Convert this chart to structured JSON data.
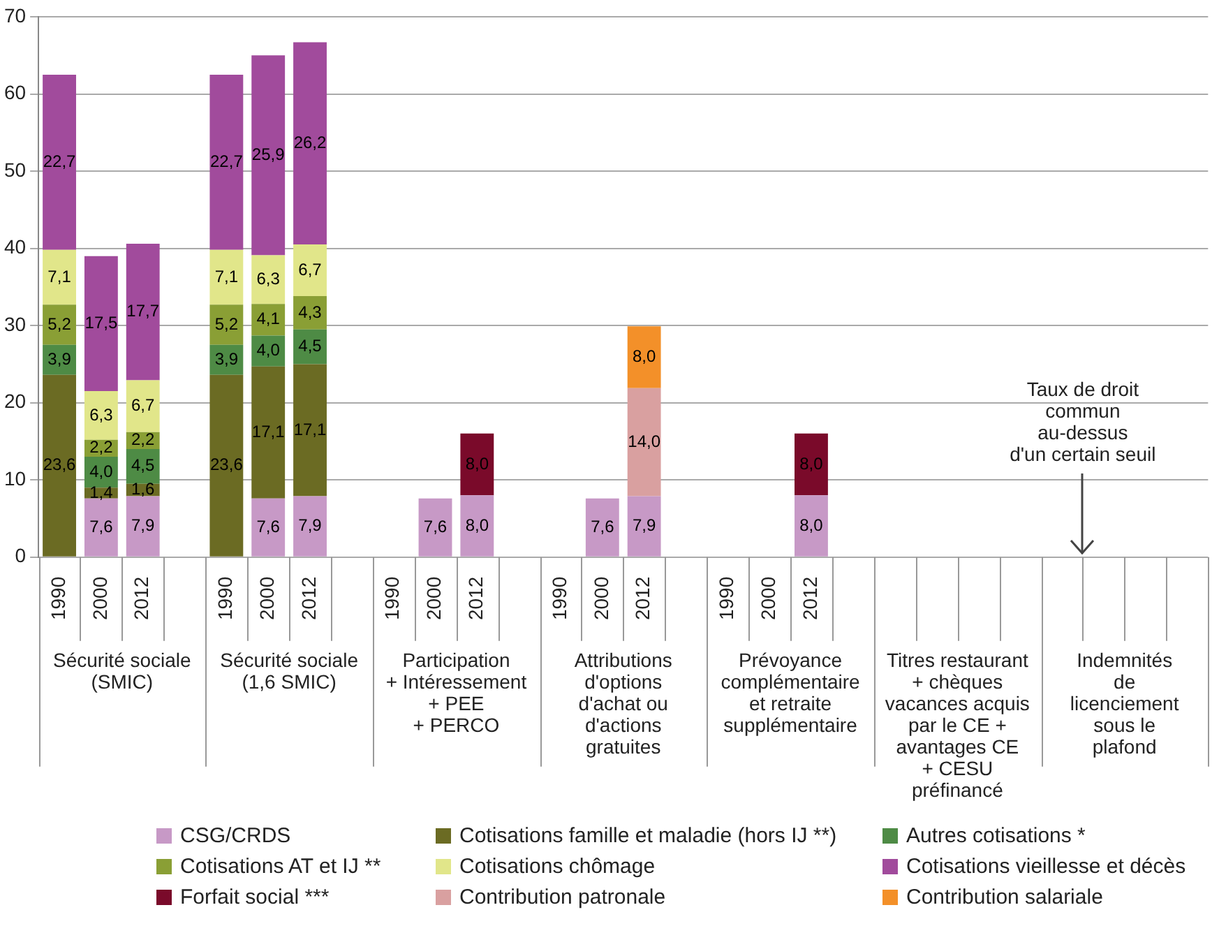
{
  "chart_data": {
    "type": "bar",
    "stacked": true,
    "grid": "y",
    "legend": "bottom",
    "categories": [
      "1990",
      "2000",
      "2012",
      null,
      "1990",
      "2000",
      "2012",
      null,
      "1990",
      "2000",
      "2012",
      null,
      "1990",
      "2000",
      "2012",
      null,
      "1990",
      "2000",
      "2012",
      null,
      null,
      null,
      null,
      null,
      null,
      null,
      null,
      null
    ],
    "ylim": [
      0,
      70
    ],
    "yticks": [
      0,
      10,
      20,
      30,
      40,
      50,
      60,
      70
    ],
    "series": [
      {
        "name": "CSG/CRDS",
        "color": "#c799c6",
        "values": [
          null,
          7.6,
          7.9,
          null,
          null,
          7.6,
          7.9,
          null,
          null,
          7.6,
          8.0,
          null,
          null,
          7.6,
          7.9,
          null,
          null,
          null,
          8.0,
          null,
          null,
          null,
          null,
          null,
          null,
          null,
          null,
          null
        ],
        "value_labels": [
          null,
          "7,6",
          "7,9",
          null,
          null,
          "7,6",
          "7,9",
          null,
          null,
          "7,6",
          "8,0",
          null,
          null,
          "7,6",
          "7,9",
          null,
          null,
          null,
          "8,0",
          null,
          null,
          null,
          null,
          null,
          null,
          null,
          null,
          null
        ]
      },
      {
        "name": "Cotisations famille et maladie (hors IJ **)",
        "color": "#6b6b23",
        "values": [
          23.6,
          1.4,
          1.6,
          null,
          23.6,
          17.1,
          17.1,
          null,
          null,
          null,
          null,
          null,
          null,
          null,
          null,
          null,
          null,
          null,
          null,
          null,
          null,
          null,
          null,
          null,
          null,
          null,
          null,
          null
        ],
        "value_labels": [
          "23,6",
          "1,4",
          "1,6",
          null,
          "23,6",
          "17,1",
          "17,1",
          null,
          null,
          null,
          null,
          null,
          null,
          null,
          null,
          null,
          null,
          null,
          null,
          null,
          null,
          null,
          null,
          null,
          null,
          null,
          null,
          null
        ]
      },
      {
        "name": "Autres cotisations *",
        "color": "#4e8b45",
        "values": [
          3.9,
          4.0,
          4.5,
          null,
          3.9,
          4.0,
          4.5,
          null,
          null,
          null,
          null,
          null,
          null,
          null,
          null,
          null,
          null,
          null,
          null,
          null,
          null,
          null,
          null,
          null,
          null,
          null,
          null,
          null
        ],
        "value_labels": [
          "3,9",
          "4,0",
          "4,5",
          null,
          "3,9",
          "4,0",
          "4,5",
          null,
          null,
          null,
          null,
          null,
          null,
          null,
          null,
          null,
          null,
          null,
          null,
          null,
          null,
          null,
          null,
          null,
          null,
          null,
          null,
          null
        ]
      },
      {
        "name": "Cotisations AT et IJ **",
        "color": "#8a9f35",
        "values": [
          5.2,
          2.2,
          2.2,
          null,
          5.2,
          4.1,
          4.3,
          null,
          null,
          null,
          null,
          null,
          null,
          null,
          null,
          null,
          null,
          null,
          null,
          null,
          null,
          null,
          null,
          null,
          null,
          null,
          null,
          null
        ],
        "value_labels": [
          "5,2",
          "2,2",
          "2,2",
          null,
          "5,2",
          "4,1",
          "4,3",
          null,
          null,
          null,
          null,
          null,
          null,
          null,
          null,
          null,
          null,
          null,
          null,
          null,
          null,
          null,
          null,
          null,
          null,
          null,
          null,
          null
        ]
      },
      {
        "name": "Cotisations chômage",
        "color": "#e1e68a",
        "values": [
          7.1,
          6.3,
          6.7,
          null,
          7.1,
          6.3,
          6.7,
          null,
          null,
          null,
          null,
          null,
          null,
          null,
          null,
          null,
          null,
          null,
          null,
          null,
          null,
          null,
          null,
          null,
          null,
          null,
          null,
          null
        ],
        "value_labels": [
          "7,1",
          "6,3",
          "6,7",
          null,
          "7,1",
          "6,3",
          "6,7",
          null,
          null,
          null,
          null,
          null,
          null,
          null,
          null,
          null,
          null,
          null,
          null,
          null,
          null,
          null,
          null,
          null,
          null,
          null,
          null,
          null
        ]
      },
      {
        "name": "Cotisations vieillesse et décès",
        "color": "#a14b9c",
        "values": [
          22.7,
          17.5,
          17.7,
          null,
          22.7,
          25.9,
          26.2,
          null,
          null,
          null,
          null,
          null,
          null,
          null,
          null,
          null,
          null,
          null,
          null,
          null,
          null,
          null,
          null,
          null,
          null,
          null,
          null,
          null
        ],
        "value_labels": [
          "22,7",
          "17,5",
          "17,7",
          null,
          "22,7",
          "25,9",
          "26,2",
          null,
          null,
          null,
          null,
          null,
          null,
          null,
          null,
          null,
          null,
          null,
          null,
          null,
          null,
          null,
          null,
          null,
          null,
          null,
          null,
          null
        ]
      },
      {
        "name": "Forfait social ***",
        "color": "#7a0a2a",
        "values": [
          null,
          null,
          null,
          null,
          null,
          null,
          null,
          null,
          null,
          null,
          8.0,
          null,
          null,
          null,
          null,
          null,
          null,
          null,
          8.0,
          null,
          null,
          null,
          null,
          null,
          null,
          null,
          null,
          null
        ],
        "value_labels": [
          null,
          null,
          null,
          null,
          null,
          null,
          null,
          null,
          null,
          null,
          "8,0",
          null,
          null,
          null,
          null,
          null,
          null,
          null,
          "8,0",
          null,
          null,
          null,
          null,
          null,
          null,
          null,
          null,
          null
        ]
      },
      {
        "name": "Contribution patronale",
        "color": "#d9a0a0",
        "values": [
          null,
          null,
          null,
          null,
          null,
          null,
          null,
          null,
          null,
          null,
          null,
          null,
          null,
          null,
          14.0,
          null,
          null,
          null,
          null,
          null,
          null,
          null,
          null,
          null,
          null,
          null,
          null,
          null
        ],
        "value_labels": [
          null,
          null,
          null,
          null,
          null,
          null,
          null,
          null,
          null,
          null,
          null,
          null,
          null,
          null,
          "14,0",
          null,
          null,
          null,
          null,
          null,
          null,
          null,
          null,
          null,
          null,
          null,
          null,
          null
        ]
      },
      {
        "name": "Contribution salariale",
        "color": "#f39029",
        "values": [
          null,
          null,
          null,
          null,
          null,
          null,
          null,
          null,
          null,
          null,
          null,
          null,
          null,
          null,
          8.0,
          null,
          null,
          null,
          null,
          null,
          null,
          null,
          null,
          null,
          null,
          null,
          null,
          null
        ],
        "value_labels": [
          null,
          null,
          null,
          null,
          null,
          null,
          null,
          null,
          null,
          null,
          null,
          null,
          null,
          null,
          "8,0",
          null,
          null,
          null,
          null,
          null,
          null,
          null,
          null,
          null,
          null,
          null,
          null,
          null
        ]
      }
    ],
    "annotations": [
      "Sécurité sociale\n(SMIC)",
      "Sécurité sociale\n(1,6 SMIC)",
      "Participation\n+ Intéressement\n+ PEE\n+ PERCO",
      "Attributions\nd'options\nd'achat ou\nd'actions\ngratuites",
      "Prévoyance\ncomplémentaire\net retraite\nsupplémentaire",
      "Titres restaurant\n+ chèques\nvacances acquis\npar le CE +\navantages CE\n+ CESU\npréfinancé",
      "Indemnités\nde\nlicenciement\nsous le\nplafond",
      "Taux de droit\ncommun\nau-dessus\nd'un certain seuil"
    ]
  }
}
